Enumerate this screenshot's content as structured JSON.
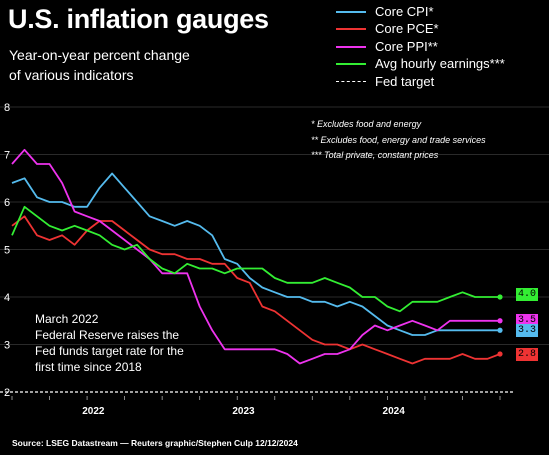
{
  "header": {
    "title": "U.S. inflation gauges",
    "subtitle_line1": "Year-on-year percent change",
    "subtitle_line2": "of various indicators"
  },
  "notes": [
    "* Excludes food and energy",
    "** Excludes food, energy and trade services",
    "*** Total private, constant prices"
  ],
  "annotation": {
    "line1": "March 2022",
    "line2": "Federal Reserve raises the",
    "line3": "Fed funds target rate for the",
    "line4": "first time since 2018"
  },
  "source": "Source: LSEG Datastream — Reuters graphic/Stephen Culp 12/12/2024",
  "badges": [
    {
      "text": "4.0",
      "color": "#33ee33",
      "value": 4.05
    },
    {
      "text": "3.5",
      "color": "#ee33ee",
      "value": 3.5
    },
    {
      "text": "3.3",
      "color": "#55bbee",
      "value": 3.3
    },
    {
      "text": "2.8",
      "color": "#ee3333",
      "value": 2.8
    }
  ],
  "chart_data": {
    "type": "line",
    "title": "U.S. inflation gauges",
    "ylim": [
      2,
      8
    ],
    "yticks": [
      2,
      3,
      4,
      5,
      6,
      7,
      8
    ],
    "x_tick_labels": [
      "2022",
      "2023",
      "2024"
    ],
    "x_tick_positions": [
      6.5,
      18.5,
      30.5
    ],
    "grid": "horizontal",
    "legend_position": "top-right",
    "reference_line": {
      "name": "Fed target",
      "value": 2.0,
      "style": "dashed"
    },
    "series": [
      {
        "name": "Core CPI*",
        "color": "#55bbee",
        "x": [
          0,
          1,
          2,
          3,
          4,
          5,
          6,
          7,
          8,
          9,
          10,
          11,
          12,
          13,
          14,
          15,
          16,
          17,
          18,
          19,
          20,
          21,
          22,
          23,
          24,
          25,
          26,
          27,
          28,
          29,
          30,
          31,
          32,
          33,
          34,
          35,
          36,
          37,
          38,
          39
        ],
        "values": [
          6.4,
          6.5,
          6.1,
          6.0,
          6.0,
          5.9,
          5.9,
          6.3,
          6.6,
          6.3,
          6.0,
          5.7,
          5.6,
          5.5,
          5.6,
          5.5,
          5.3,
          4.8,
          4.7,
          4.4,
          4.2,
          4.1,
          4.0,
          4.0,
          3.9,
          3.9,
          3.8,
          3.9,
          3.8,
          3.6,
          3.4,
          3.3,
          3.2,
          3.2,
          3.3,
          3.3,
          3.3,
          3.3,
          3.3,
          3.3
        ]
      },
      {
        "name": "Core PCE*",
        "color": "#ee3333",
        "x": [
          0,
          1,
          2,
          3,
          4,
          5,
          6,
          7,
          8,
          9,
          10,
          11,
          12,
          13,
          14,
          15,
          16,
          17,
          18,
          19,
          20,
          21,
          22,
          23,
          24,
          25,
          26,
          27,
          28,
          29,
          30,
          31,
          32,
          33,
          34,
          35,
          36,
          37,
          38,
          39
        ],
        "values": [
          5.5,
          5.7,
          5.3,
          5.2,
          5.3,
          5.1,
          5.4,
          5.6,
          5.6,
          5.4,
          5.2,
          5.0,
          4.9,
          4.9,
          4.8,
          4.8,
          4.7,
          4.7,
          4.4,
          4.3,
          3.8,
          3.7,
          3.5,
          3.3,
          3.1,
          3.0,
          3.0,
          2.9,
          3.0,
          2.9,
          2.8,
          2.7,
          2.6,
          2.7,
          2.7,
          2.7,
          2.8,
          2.7,
          2.7,
          2.8
        ]
      },
      {
        "name": "Core PPI**",
        "color": "#ee33ee",
        "x": [
          0,
          1,
          2,
          3,
          4,
          5,
          6,
          7,
          8,
          9,
          10,
          11,
          12,
          13,
          14,
          15,
          16,
          17,
          18,
          19,
          20,
          21,
          22,
          23,
          24,
          25,
          26,
          27,
          28,
          29,
          30,
          31,
          32,
          33,
          34,
          35,
          36,
          37,
          38,
          39
        ],
        "values": [
          6.8,
          7.1,
          6.8,
          6.8,
          6.4,
          5.8,
          5.7,
          5.6,
          5.4,
          5.2,
          5.0,
          4.8,
          4.5,
          4.5,
          4.5,
          3.8,
          3.3,
          2.9,
          2.9,
          2.9,
          2.9,
          2.9,
          2.8,
          2.6,
          2.7,
          2.8,
          2.8,
          2.9,
          3.2,
          3.4,
          3.3,
          3.4,
          3.5,
          3.4,
          3.3,
          3.5,
          3.5,
          3.5,
          3.5,
          3.5
        ]
      },
      {
        "name": "Avg hourly earnings***",
        "color": "#33ee33",
        "x": [
          0,
          1,
          2,
          3,
          4,
          5,
          6,
          7,
          8,
          9,
          10,
          11,
          12,
          13,
          14,
          15,
          16,
          17,
          18,
          19,
          20,
          21,
          22,
          23,
          24,
          25,
          26,
          27,
          28,
          29,
          30,
          31,
          32,
          33,
          34,
          35,
          36,
          37,
          38,
          39
        ],
        "values": [
          5.3,
          5.9,
          5.7,
          5.5,
          5.4,
          5.5,
          5.4,
          5.3,
          5.1,
          5.0,
          5.1,
          4.8,
          4.6,
          4.5,
          4.7,
          4.6,
          4.6,
          4.5,
          4.6,
          4.6,
          4.6,
          4.4,
          4.3,
          4.3,
          4.3,
          4.4,
          4.3,
          4.2,
          4.0,
          4.0,
          3.8,
          3.7,
          3.9,
          3.9,
          3.9,
          4.0,
          4.1,
          4.0,
          4.0,
          4.0
        ]
      },
      {
        "name": "Fed target",
        "color": "#ffffff",
        "style": "dashed",
        "x": [
          0,
          39
        ],
        "values": [
          2.0,
          2.0
        ]
      }
    ]
  }
}
